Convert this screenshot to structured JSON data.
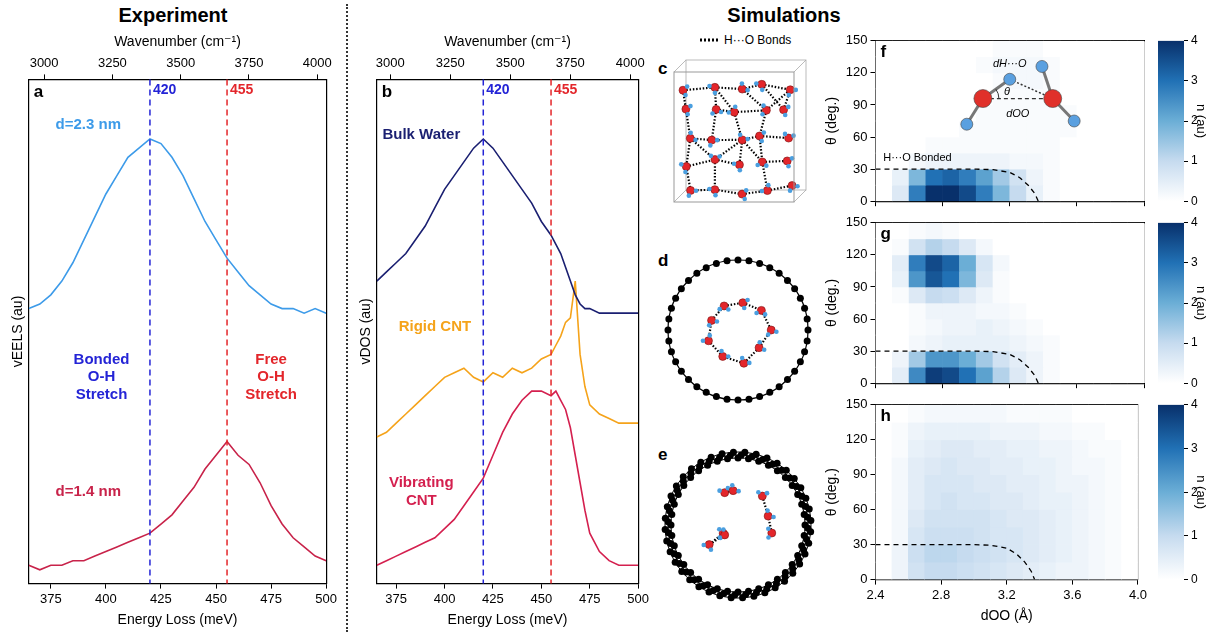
{
  "headers": [
    "Experiment",
    "Simulations"
  ],
  "chart_data": [
    {
      "panel": "a",
      "type": "line",
      "x_label": "Energy Loss (meV)",
      "x2_label": "Wavenumber (cm⁻¹)",
      "y_label": "vEELS (au)",
      "x": [
        365,
        370,
        375,
        380,
        385,
        390,
        395,
        400,
        405,
        410,
        415,
        420,
        425,
        430,
        435,
        440,
        445,
        450,
        455,
        460,
        465,
        470,
        475,
        480,
        485,
        490,
        495,
        500
      ],
      "xlim": [
        365,
        500
      ],
      "xticks": [
        375,
        400,
        425,
        450,
        475,
        500
      ],
      "x2lim": [
        2943.9,
        4032.8
      ],
      "x2ticks": [
        3000,
        3250,
        3500,
        3750,
        4000
      ],
      "ylim": [
        0,
        1.1
      ],
      "tick_labels": "x",
      "grid": false,
      "series": [
        {
          "name": "d=2.3 nm",
          "color": "#3d9be9",
          "label_at": [
            392,
            1.0
          ],
          "values": [
            0.6,
            0.61,
            0.63,
            0.66,
            0.7,
            0.75,
            0.8,
            0.85,
            0.89,
            0.93,
            0.95,
            0.97,
            0.96,
            0.93,
            0.89,
            0.84,
            0.79,
            0.75,
            0.71,
            0.68,
            0.65,
            0.63,
            0.61,
            0.6,
            0.6,
            0.59,
            0.6,
            0.59
          ]
        },
        {
          "name": "d=1.4 nm",
          "color": "#c8234a",
          "label_at": [
            392,
            0.2
          ],
          "values": [
            0.04,
            0.03,
            0.04,
            0.04,
            0.05,
            0.05,
            0.06,
            0.07,
            0.08,
            0.09,
            0.1,
            0.11,
            0.13,
            0.15,
            0.18,
            0.21,
            0.25,
            0.28,
            0.31,
            0.28,
            0.26,
            0.22,
            0.17,
            0.13,
            0.1,
            0.08,
            0.06,
            0.05
          ]
        }
      ],
      "vlines": [
        {
          "x": 420,
          "label": "420",
          "color": "#2424d6"
        },
        {
          "x": 455,
          "label": "455",
          "color": "#e3262b"
        }
      ],
      "annotations": [
        {
          "text": "Bonded O-H Stretch",
          "x": 398,
          "y": 0.45,
          "color": "#2424d6"
        },
        {
          "text": "Free O-H Stretch",
          "x": 475,
          "y": 0.45,
          "color": "#e3262b"
        }
      ]
    },
    {
      "panel": "b",
      "type": "line",
      "x_label": "Energy Loss (meV)",
      "x2_label": "Wavenumber (cm⁻¹)",
      "y_label": "vDOS (au)",
      "x": [
        365,
        370,
        375,
        380,
        385,
        390,
        395,
        400,
        405,
        410,
        415,
        420,
        425,
        430,
        435,
        440,
        445,
        450,
        455,
        457.5,
        460,
        462.5,
        465,
        467.5,
        470,
        472.5,
        475,
        480,
        485,
        490,
        495,
        500
      ],
      "xlim": [
        365,
        500
      ],
      "xticks": [
        375,
        400,
        425,
        450,
        475,
        500
      ],
      "x2lim": [
        2943.9,
        4032.8
      ],
      "x2ticks": [
        3000,
        3250,
        3500,
        3750,
        4000
      ],
      "ylim": [
        0,
        1.1
      ],
      "tick_labels": "x",
      "grid": false,
      "series": [
        {
          "name": "Bulk Water",
          "color": "#1a1f71",
          "label_at": [
            388,
            0.98
          ],
          "values": [
            0.66,
            0.68,
            0.7,
            0.72,
            0.75,
            0.78,
            0.82,
            0.86,
            0.89,
            0.92,
            0.95,
            0.97,
            0.95,
            0.92,
            0.89,
            0.86,
            0.83,
            0.79,
            0.76,
            0.74,
            0.72,
            0.69,
            0.66,
            0.63,
            0.61,
            0.6,
            0.6,
            0.59,
            0.59,
            0.59,
            0.59,
            0.59
          ]
        },
        {
          "name": "Rigid CNT",
          "color": "#f5a31a",
          "label_at": [
            395,
            0.56
          ],
          "values": [
            0.32,
            0.33,
            0.35,
            0.37,
            0.39,
            0.41,
            0.43,
            0.45,
            0.46,
            0.47,
            0.45,
            0.44,
            0.46,
            0.45,
            0.47,
            0.46,
            0.47,
            0.49,
            0.5,
            0.52,
            0.54,
            0.57,
            0.58,
            0.66,
            0.5,
            0.43,
            0.39,
            0.37,
            0.36,
            0.35,
            0.35,
            0.35
          ]
        },
        {
          "name": "Vibrating CNT",
          "color": "#d4204f",
          "label_at": [
            388,
            0.2
          ],
          "values": [
            0.04,
            0.05,
            0.06,
            0.07,
            0.08,
            0.09,
            0.1,
            0.12,
            0.14,
            0.17,
            0.2,
            0.23,
            0.28,
            0.33,
            0.37,
            0.4,
            0.42,
            0.42,
            0.41,
            0.42,
            0.4,
            0.38,
            0.34,
            0.28,
            0.22,
            0.16,
            0.11,
            0.07,
            0.05,
            0.04,
            0.04,
            0.04
          ]
        }
      ],
      "vlines": [
        {
          "x": 420,
          "label": "420",
          "color": "#2424d6"
        },
        {
          "x": 455,
          "label": "455",
          "color": "#e3262b"
        }
      ]
    },
    {
      "panel": "f",
      "type": "heatmap",
      "y_label": "θ (deg.)",
      "xlim": [
        2.4,
        4.0
      ],
      "xticks": [
        2.4,
        2.8,
        3.2,
        3.6,
        {
          "value": 4,
          "label": "4.0"
        }
      ],
      "ylim": [
        0,
        150
      ],
      "yticks": [
        0,
        30,
        60,
        90,
        120,
        150
      ],
      "tick_labels": "y",
      "grid": false,
      "x_edges": [
        2.4,
        2.5,
        2.6,
        2.7,
        2.8,
        2.9,
        3.0,
        3.1,
        3.2,
        3.3,
        3.4,
        3.5,
        3.6,
        3.7,
        3.8,
        3.9,
        4.0
      ],
      "y_edges": [
        0,
        15,
        30,
        45,
        60,
        75,
        90,
        105,
        120,
        135,
        150
      ],
      "cells": [
        [
          0,
          0.6,
          2.8,
          4,
          4,
          3.6,
          2.8,
          1.8,
          1,
          0.4,
          0.1,
          0,
          0,
          0,
          0,
          0
        ],
        [
          0,
          0.4,
          1.8,
          3,
          3.2,
          2.8,
          2.2,
          1.4,
          0.8,
          0.3,
          0.1,
          0,
          0,
          0,
          0,
          0
        ],
        [
          0,
          0,
          0.2,
          0.3,
          0.3,
          0.3,
          0.3,
          0.3,
          0.2,
          0.2,
          0.1,
          0,
          0,
          0,
          0,
          0
        ],
        [
          0,
          0,
          0,
          0.1,
          0.1,
          0.1,
          0.1,
          0.1,
          0.1,
          0.1,
          0.1,
          0,
          0,
          0,
          0,
          0
        ],
        [
          0,
          0,
          0,
          0,
          0,
          0.1,
          0.1,
          0.1,
          0.1,
          0.1,
          0.1,
          0.1,
          0,
          0,
          0,
          0
        ],
        [
          0,
          0,
          0,
          0,
          0,
          0,
          0.1,
          0.1,
          0.1,
          0.1,
          0.1,
          0.1,
          0,
          0,
          0,
          0
        ],
        [
          0,
          0,
          0,
          0,
          0,
          0,
          0,
          0.1,
          0.1,
          0.1,
          0.1,
          0,
          0,
          0,
          0,
          0
        ],
        [
          0,
          0,
          0,
          0,
          0,
          0,
          0,
          0.1,
          0.2,
          0.2,
          0.1,
          0,
          0,
          0,
          0,
          0
        ],
        [
          0,
          0,
          0,
          0,
          0,
          0,
          0.1,
          0.2,
          0.2,
          0.2,
          0.1,
          0,
          0,
          0,
          0,
          0
        ],
        [
          0,
          0,
          0,
          0,
          0,
          0,
          0,
          0.1,
          0.1,
          0.1,
          0,
          0,
          0,
          0,
          0,
          0
        ]
      ],
      "colorbar": {
        "range": [
          0,
          4
        ],
        "ticks": [
          0,
          1,
          2,
          3,
          4
        ],
        "label": "n (au)"
      },
      "series": [
        {
          "name": "H···O Bonded",
          "type": "line",
          "line_style": "dashed",
          "color": "#000000",
          "label_at": [
            2.65,
            40
          ],
          "x": [
            2.4,
            3.0,
            3.1,
            3.2,
            3.26,
            3.31,
            3.35,
            3.37
          ],
          "values": [
            30,
            30,
            29.5,
            27,
            22,
            15,
            7,
            0
          ]
        }
      ],
      "inset_labels": [
        "dH···O",
        "θ",
        "dOO"
      ]
    },
    {
      "panel": "g",
      "type": "heatmap",
      "y_label": "θ (deg.)",
      "xlim": [
        2.4,
        4.0
      ],
      "xticks": [
        2.4,
        2.8,
        3.2,
        3.6,
        {
          "value": 4,
          "label": "4.0"
        }
      ],
      "ylim": [
        0,
        150
      ],
      "yticks": [
        0,
        30,
        60,
        90,
        120,
        150
      ],
      "tick_labels": "y",
      "grid": false,
      "x_edges": [
        2.4,
        2.5,
        2.6,
        2.7,
        2.8,
        2.9,
        3.0,
        3.1,
        3.2,
        3.3,
        3.4,
        3.5,
        3.6,
        3.7,
        3.8,
        3.9,
        4.0
      ],
      "y_edges": [
        0,
        15,
        30,
        45,
        60,
        75,
        90,
        105,
        120,
        135,
        150
      ],
      "cells": [
        [
          0,
          0.5,
          2.6,
          3.8,
          3.6,
          3,
          2.2,
          1.2,
          0.6,
          0.3,
          0.1,
          0,
          0,
          0,
          0,
          0
        ],
        [
          0,
          0.3,
          1.4,
          2.4,
          2.4,
          2,
          1.4,
          0.8,
          0.5,
          0.3,
          0.1,
          0,
          0,
          0,
          0,
          0
        ],
        [
          0,
          0,
          0.2,
          0.3,
          0.4,
          0.4,
          0.4,
          0.4,
          0.3,
          0.2,
          0.1,
          0,
          0,
          0,
          0,
          0
        ],
        [
          0,
          0,
          0.1,
          0.2,
          0.3,
          0.3,
          0.4,
          0.3,
          0.2,
          0.1,
          0,
          0,
          0,
          0,
          0,
          0
        ],
        [
          0,
          0,
          0.1,
          0.3,
          0.3,
          0.3,
          0.2,
          0.2,
          0.1,
          0,
          0,
          0,
          0,
          0,
          0,
          0
        ],
        [
          0,
          0.1,
          0.6,
          1,
          0.9,
          0.6,
          0.3,
          0.1,
          0,
          0,
          0,
          0,
          0,
          0,
          0,
          0
        ],
        [
          0,
          0.4,
          2.4,
          3.4,
          3,
          1.8,
          0.6,
          0.1,
          0,
          0,
          0,
          0,
          0,
          0,
          0,
          0
        ],
        [
          0,
          0.5,
          2.8,
          3.6,
          3.2,
          2,
          0.7,
          0.2,
          0,
          0,
          0,
          0,
          0,
          0,
          0,
          0
        ],
        [
          0,
          0.1,
          0.8,
          1.2,
          1,
          0.6,
          0.2,
          0,
          0,
          0,
          0,
          0,
          0,
          0,
          0,
          0
        ],
        [
          0,
          0,
          0.1,
          0.2,
          0.1,
          0,
          0,
          0,
          0,
          0,
          0,
          0,
          0,
          0,
          0,
          0
        ]
      ],
      "colorbar": {
        "range": [
          0,
          4
        ],
        "ticks": [
          0,
          1,
          2,
          3,
          4
        ],
        "label": "n (au)"
      },
      "series": [
        {
          "type": "line",
          "line_style": "dashed",
          "color": "#000000",
          "x": [
            2.4,
            3.0,
            3.1,
            3.2,
            3.26,
            3.31,
            3.35,
            3.37
          ],
          "values": [
            30,
            30,
            29.5,
            27,
            22,
            15,
            7,
            0
          ]
        }
      ]
    },
    {
      "panel": "h",
      "type": "heatmap",
      "x_label": "dOO (Å)",
      "y_label": "θ (deg.)",
      "xlim": [
        2.4,
        4.0
      ],
      "xticks": [
        2.4,
        2.8,
        3.2,
        3.6,
        {
          "value": 4,
          "label": "4.0"
        }
      ],
      "ylim": [
        0,
        150
      ],
      "yticks": [
        0,
        30,
        60,
        90,
        120,
        150
      ],
      "grid": false,
      "x_edges": [
        2.4,
        2.5,
        2.6,
        2.7,
        2.8,
        2.9,
        3.0,
        3.1,
        3.2,
        3.3,
        3.4,
        3.5,
        3.6,
        3.7,
        3.8,
        3.9,
        4.0
      ],
      "y_edges": [
        0,
        15,
        30,
        45,
        60,
        75,
        90,
        105,
        120,
        135,
        150
      ],
      "cells": [
        [
          0,
          0.3,
          0.8,
          1,
          1,
          0.9,
          0.8,
          0.7,
          0.6,
          0.5,
          0.4,
          0.3,
          0.3,
          0.2,
          0.1,
          0
        ],
        [
          0,
          0.3,
          0.9,
          1.1,
          1.1,
          1,
          0.9,
          0.8,
          0.7,
          0.6,
          0.5,
          0.4,
          0.3,
          0.2,
          0.1,
          0
        ],
        [
          0,
          0.2,
          0.7,
          0.9,
          0.9,
          0.9,
          0.8,
          0.7,
          0.7,
          0.6,
          0.5,
          0.4,
          0.3,
          0.2,
          0.1,
          0
        ],
        [
          0,
          0.2,
          0.6,
          0.8,
          0.8,
          0.8,
          0.8,
          0.7,
          0.6,
          0.6,
          0.5,
          0.4,
          0.3,
          0.2,
          0.1,
          0
        ],
        [
          0,
          0.2,
          0.5,
          0.7,
          0.8,
          0.7,
          0.7,
          0.6,
          0.6,
          0.5,
          0.4,
          0.4,
          0.3,
          0.2,
          0.1,
          0
        ],
        [
          0,
          0.2,
          0.5,
          0.7,
          0.7,
          0.7,
          0.6,
          0.6,
          0.5,
          0.5,
          0.4,
          0.3,
          0.3,
          0.2,
          0.1,
          0
        ],
        [
          0,
          0.2,
          0.5,
          0.6,
          0.7,
          0.6,
          0.6,
          0.5,
          0.5,
          0.4,
          0.4,
          0.3,
          0.2,
          0.2,
          0.1,
          0
        ],
        [
          0,
          0.1,
          0.4,
          0.5,
          0.6,
          0.6,
          0.5,
          0.5,
          0.4,
          0.4,
          0.3,
          0.3,
          0.2,
          0.1,
          0.1,
          0
        ],
        [
          0,
          0.1,
          0.3,
          0.4,
          0.4,
          0.4,
          0.4,
          0.3,
          0.3,
          0.3,
          0.2,
          0.2,
          0.1,
          0.1,
          0,
          0
        ],
        [
          0,
          0,
          0.1,
          0.2,
          0.2,
          0.2,
          0.2,
          0.2,
          0.1,
          0.1,
          0.1,
          0.1,
          0,
          0,
          0,
          0
        ]
      ],
      "colorbar": {
        "range": [
          0,
          4
        ],
        "ticks": [
          0,
          1,
          2,
          3,
          4
        ],
        "label": "n (au)"
      },
      "series": [
        {
          "type": "line",
          "line_style": "dashed",
          "color": "#000000",
          "x": [
            2.4,
            3.0,
            3.1,
            3.2,
            3.26,
            3.31,
            3.35,
            3.37
          ],
          "values": [
            30,
            30,
            29.5,
            27,
            22,
            15,
            7,
            0
          ]
        }
      ]
    }
  ],
  "diagrams": [
    {
      "panel": "c",
      "key_text": "H···O Bonds"
    },
    {
      "panel": "d"
    },
    {
      "panel": "e"
    }
  ]
}
